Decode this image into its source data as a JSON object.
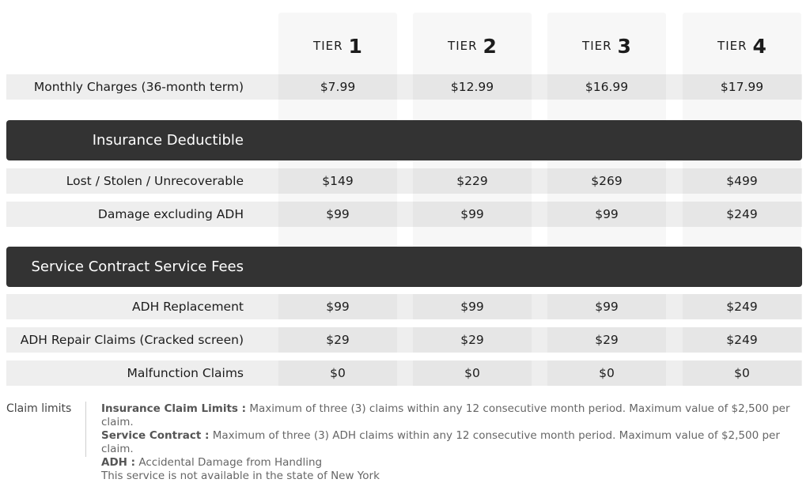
{
  "tiers": [
    {
      "word": "TIER",
      "num": "1"
    },
    {
      "word": "TIER",
      "num": "2"
    },
    {
      "word": "TIER",
      "num": "3"
    },
    {
      "word": "TIER",
      "num": "4"
    }
  ],
  "monthly": {
    "label": "Monthly Charges (36-month term)",
    "values": [
      "$7.99",
      "$12.99",
      "$16.99",
      "$17.99"
    ]
  },
  "insurance": {
    "title": "Insurance Deductible",
    "rows": [
      {
        "label": "Lost / Stolen / Unrecoverable",
        "values": [
          "$149",
          "$229",
          "$269",
          "$499"
        ]
      },
      {
        "label": "Damage excluding ADH",
        "values": [
          "$99",
          "$99",
          "$99",
          "$249"
        ]
      }
    ]
  },
  "service": {
    "title": "Service Contract Service Fees",
    "rows": [
      {
        "label": "ADH Replacement",
        "values": [
          "$99",
          "$99",
          "$99",
          "$249"
        ]
      },
      {
        "label": "ADH Repair Claims (Cracked screen)",
        "values": [
          "$29",
          "$29",
          "$29",
          "$249"
        ]
      },
      {
        "label": "Malfunction Claims",
        "values": [
          "$0",
          "$0",
          "$0",
          "$0"
        ]
      }
    ]
  },
  "claims": {
    "label": "Claim limits",
    "line1_bold": "Insurance Claim Limits :",
    "line1_text": " Maximum of three (3) claims within any  12 consecutive month period. Maximum value of $2,500 per claim.",
    "line2_bold": "Service Contract :",
    "line2_text": " Maximum of three (3) ADH claims within any  12 consecutive month period. Maximum value of $2,500 per claim.",
    "line3_bold": "ADH :",
    "line3_text": " Accidental Damage from Handling",
    "line4_text": "This service is not available in the state of New York"
  }
}
